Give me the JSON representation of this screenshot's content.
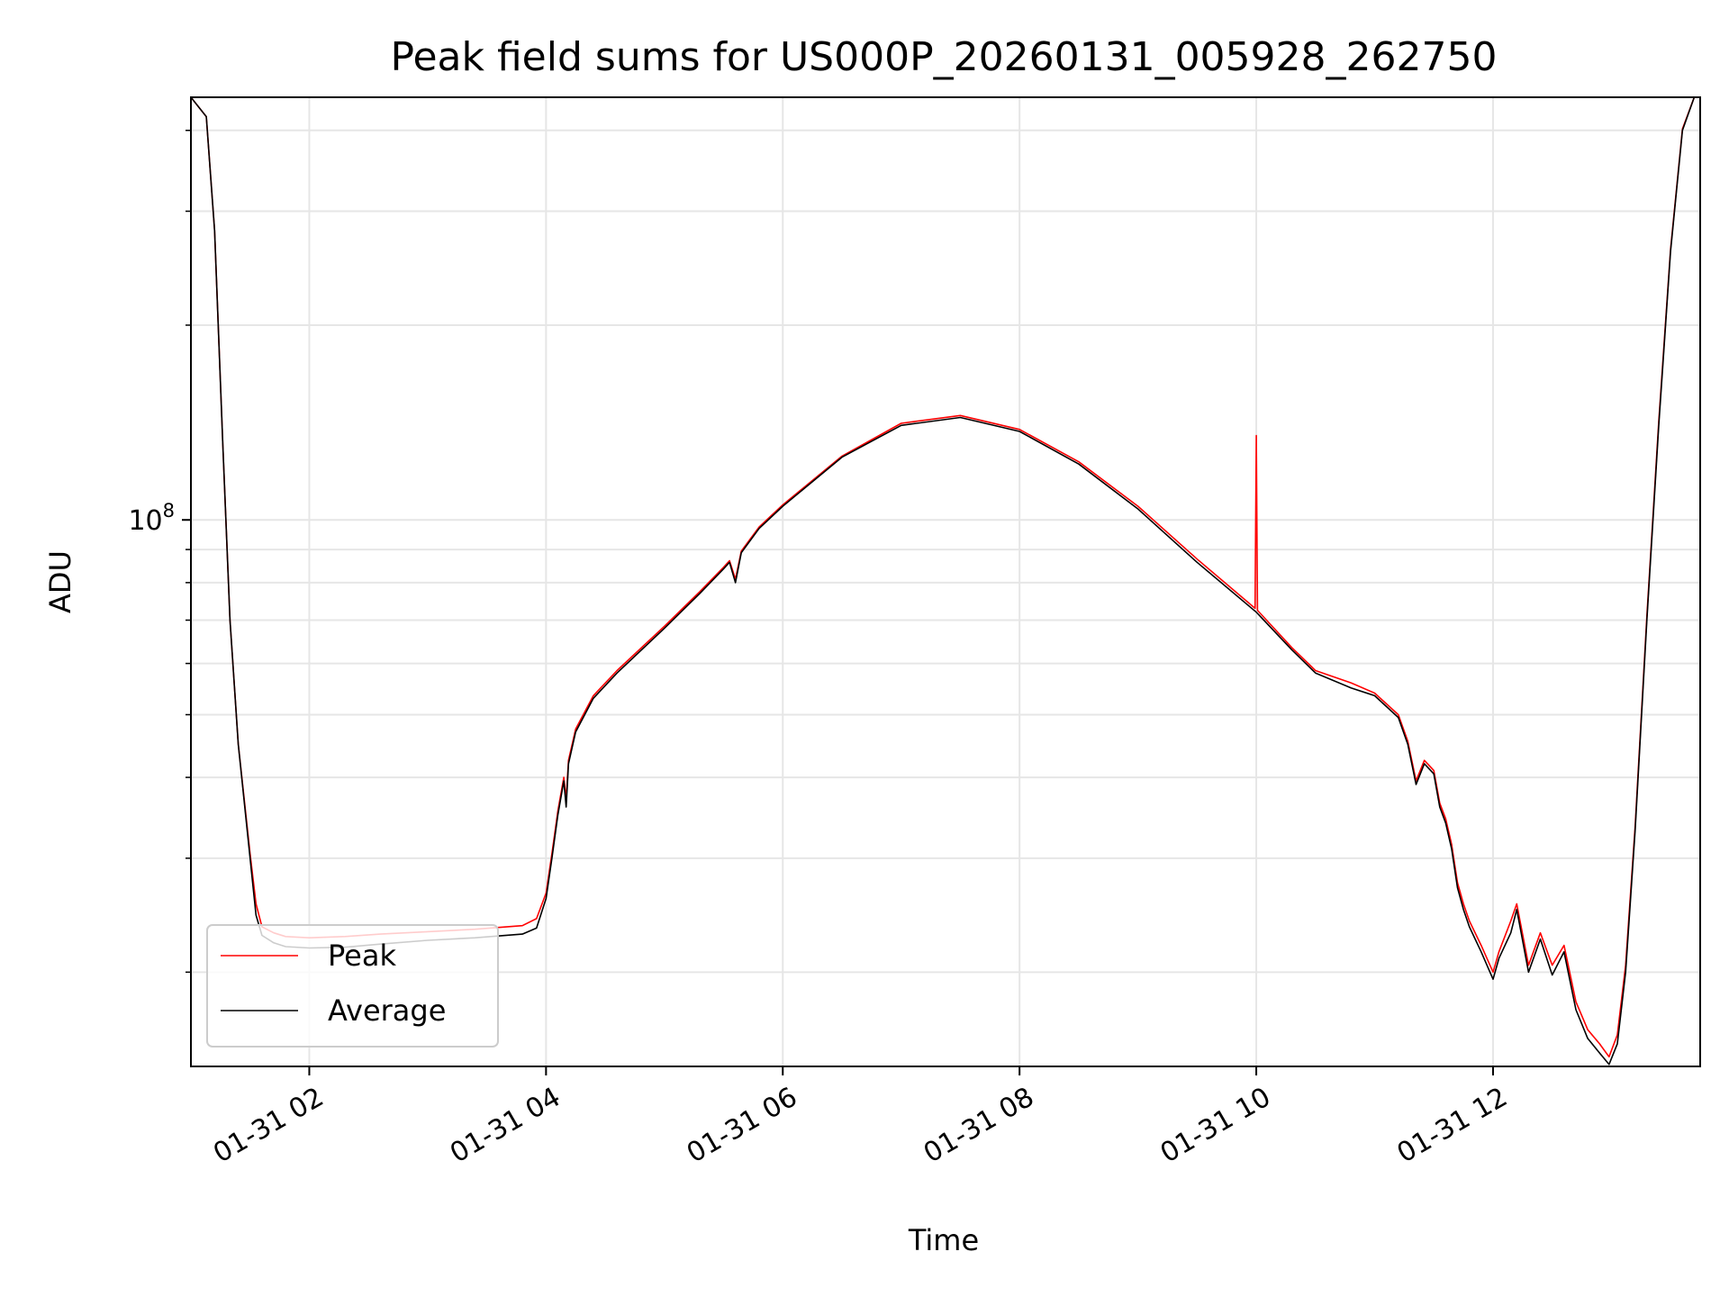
{
  "chart_data": {
    "type": "line",
    "title": "Peak field sums for US000P_20260131_005928_262750",
    "xlabel": "Time",
    "ylabel": "ADU",
    "x_unit": "hours since 01-31 00:00 (date 2026-01-31)",
    "xlim": [
      1.0,
      13.75
    ],
    "ylim": [
      14300000,
      450000000
    ],
    "yscale": "log",
    "x_ticks": [
      {
        "x": 2,
        "label": "01-31 02"
      },
      {
        "x": 4,
        "label": "01-31 04"
      },
      {
        "x": 6,
        "label": "01-31 06"
      },
      {
        "x": 8,
        "label": "01-31 08"
      },
      {
        "x": 10,
        "label": "01-31 10"
      },
      {
        "x": 12,
        "label": "01-31 12"
      }
    ],
    "y_major_ticks": [
      {
        "y": 100000000,
        "base": "10",
        "exp": "8"
      }
    ],
    "y_minor_ticks": [
      20000000,
      30000000,
      40000000,
      50000000,
      60000000,
      70000000,
      80000000,
      90000000,
      200000000,
      300000000,
      400000000
    ],
    "grid": true,
    "legend": {
      "position": "lower-left",
      "entries": [
        "Peak",
        "Average"
      ]
    },
    "series": [
      {
        "name": "Average",
        "color": "#000000",
        "points": [
          [
            1.0,
            450000000
          ],
          [
            1.13,
            420000000
          ],
          [
            1.2,
            280000000
          ],
          [
            1.27,
            130000000
          ],
          [
            1.33,
            70000000
          ],
          [
            1.4,
            45000000
          ],
          [
            1.5,
            30000000
          ],
          [
            1.55,
            24500000
          ],
          [
            1.6,
            22800000
          ],
          [
            1.7,
            22200000
          ],
          [
            1.8,
            21900000
          ],
          [
            2.0,
            21800000
          ],
          [
            2.3,
            21850000
          ],
          [
            2.6,
            22100000
          ],
          [
            3.0,
            22400000
          ],
          [
            3.4,
            22600000
          ],
          [
            3.8,
            22900000
          ],
          [
            3.92,
            23400000
          ],
          [
            4.0,
            26000000
          ],
          [
            4.05,
            30000000
          ],
          [
            4.1,
            35000000
          ],
          [
            4.15,
            39500000
          ],
          [
            4.17,
            36000000
          ],
          [
            4.19,
            42000000
          ],
          [
            4.25,
            47000000
          ],
          [
            4.4,
            53000000
          ],
          [
            4.6,
            58000000
          ],
          [
            5.0,
            68000000
          ],
          [
            5.3,
            77000000
          ],
          [
            5.5,
            84000000
          ],
          [
            5.55,
            86000000
          ],
          [
            5.6,
            80000000
          ],
          [
            5.65,
            89000000
          ],
          [
            5.8,
            97000000
          ],
          [
            6.0,
            105000000
          ],
          [
            6.5,
            125000000
          ],
          [
            7.0,
            140000000
          ],
          [
            7.5,
            144000000
          ],
          [
            8.0,
            137000000
          ],
          [
            8.5,
            122000000
          ],
          [
            9.0,
            104000000
          ],
          [
            9.5,
            86000000
          ],
          [
            10.0,
            72000000
          ],
          [
            10.3,
            63000000
          ],
          [
            10.5,
            58000000
          ],
          [
            10.8,
            55000000
          ],
          [
            11.0,
            53500000
          ],
          [
            11.2,
            49500000
          ],
          [
            11.28,
            45000000
          ],
          [
            11.35,
            39000000
          ],
          [
            11.42,
            42000000
          ],
          [
            11.5,
            40500000
          ],
          [
            11.55,
            36000000
          ],
          [
            11.6,
            34000000
          ],
          [
            11.65,
            31000000
          ],
          [
            11.7,
            27000000
          ],
          [
            11.75,
            25000000
          ],
          [
            11.8,
            23500000
          ],
          [
            11.9,
            21500000
          ],
          [
            12.0,
            19500000
          ],
          [
            12.05,
            21000000
          ],
          [
            12.15,
            23000000
          ],
          [
            12.2,
            25000000
          ],
          [
            12.3,
            20000000
          ],
          [
            12.4,
            22500000
          ],
          [
            12.5,
            19800000
          ],
          [
            12.6,
            21500000
          ],
          [
            12.7,
            17500000
          ],
          [
            12.8,
            15800000
          ],
          [
            12.9,
            15000000
          ],
          [
            12.98,
            14400000
          ],
          [
            13.05,
            15500000
          ],
          [
            13.12,
            20000000
          ],
          [
            13.2,
            33000000
          ],
          [
            13.3,
            70000000
          ],
          [
            13.4,
            140000000
          ],
          [
            13.5,
            260000000
          ],
          [
            13.6,
            400000000
          ],
          [
            13.7,
            450000000
          ]
        ]
      },
      {
        "name": "Peak",
        "color": "#ff0000",
        "points": [
          [
            1.0,
            450000000
          ],
          [
            1.13,
            420000000
          ],
          [
            1.2,
            280000000
          ],
          [
            1.27,
            130000000
          ],
          [
            1.33,
            70000000
          ],
          [
            1.4,
            45000000
          ],
          [
            1.5,
            30500000
          ],
          [
            1.55,
            25500000
          ],
          [
            1.6,
            23500000
          ],
          [
            1.7,
            23000000
          ],
          [
            1.8,
            22700000
          ],
          [
            2.0,
            22600000
          ],
          [
            2.3,
            22700000
          ],
          [
            2.6,
            22900000
          ],
          [
            3.0,
            23100000
          ],
          [
            3.4,
            23300000
          ],
          [
            3.8,
            23600000
          ],
          [
            3.92,
            24200000
          ],
          [
            4.0,
            26500000
          ],
          [
            4.05,
            30500000
          ],
          [
            4.1,
            35500000
          ],
          [
            4.15,
            40000000
          ],
          [
            4.17,
            37000000
          ],
          [
            4.19,
            42500000
          ],
          [
            4.25,
            47500000
          ],
          [
            4.4,
            53500000
          ],
          [
            4.6,
            58500000
          ],
          [
            5.0,
            68500000
          ],
          [
            5.3,
            77500000
          ],
          [
            5.5,
            84500000
          ],
          [
            5.55,
            86500000
          ],
          [
            5.6,
            81000000
          ],
          [
            5.65,
            89500000
          ],
          [
            5.8,
            97500000
          ],
          [
            6.0,
            105500000
          ],
          [
            6.5,
            125500000
          ],
          [
            7.0,
            141000000
          ],
          [
            7.5,
            145000000
          ],
          [
            8.0,
            138000000
          ],
          [
            8.5,
            123000000
          ],
          [
            9.0,
            105000000
          ],
          [
            9.5,
            87000000
          ],
          [
            9.99,
            73000000
          ],
          [
            10.0,
            135000000
          ],
          [
            10.01,
            72500000
          ],
          [
            10.3,
            63500000
          ],
          [
            10.5,
            58500000
          ],
          [
            10.8,
            56000000
          ],
          [
            11.0,
            54000000
          ],
          [
            11.2,
            50000000
          ],
          [
            11.28,
            45500000
          ],
          [
            11.35,
            39500000
          ],
          [
            11.42,
            42500000
          ],
          [
            11.5,
            41000000
          ],
          [
            11.55,
            36500000
          ],
          [
            11.6,
            34500000
          ],
          [
            11.65,
            31500000
          ],
          [
            11.7,
            27500000
          ],
          [
            11.75,
            25500000
          ],
          [
            11.8,
            24000000
          ],
          [
            11.9,
            22000000
          ],
          [
            12.0,
            20000000
          ],
          [
            12.05,
            21500000
          ],
          [
            12.15,
            24000000
          ],
          [
            12.2,
            25500000
          ],
          [
            12.3,
            20500000
          ],
          [
            12.4,
            23000000
          ],
          [
            12.5,
            20500000
          ],
          [
            12.6,
            22000000
          ],
          [
            12.7,
            18000000
          ],
          [
            12.8,
            16300000
          ],
          [
            12.9,
            15500000
          ],
          [
            12.98,
            14800000
          ],
          [
            13.05,
            16000000
          ],
          [
            13.12,
            20500000
          ],
          [
            13.2,
            33500000
          ],
          [
            13.3,
            71000000
          ],
          [
            13.4,
            142000000
          ],
          [
            13.5,
            262000000
          ],
          [
            13.6,
            402000000
          ],
          [
            13.7,
            450000000
          ]
        ]
      }
    ]
  }
}
